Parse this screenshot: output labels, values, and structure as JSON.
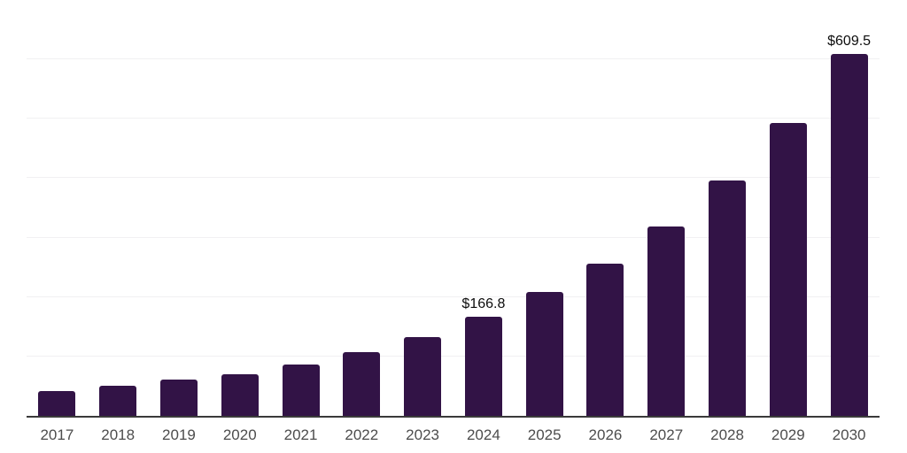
{
  "chart_data": {
    "type": "bar",
    "title": "",
    "xlabel": "",
    "ylabel": "",
    "categories": [
      "2017",
      "2018",
      "2019",
      "2020",
      "2021",
      "2022",
      "2023",
      "2024",
      "2025",
      "2026",
      "2027",
      "2028",
      "2029",
      "2030"
    ],
    "values": [
      41.8,
      50.3,
      60.7,
      70.6,
      86.6,
      107.5,
      132.8,
      166.8,
      207.9,
      256.3,
      319.4,
      396.6,
      492.5,
      609.5
    ],
    "value_labels": [
      "",
      "",
      "",
      "",
      "",
      "",
      "",
      "$166.8",
      "",
      "",
      "",
      "",
      "",
      "$609.5"
    ],
    "ylim": [
      0,
      700
    ],
    "gridline_step": 100,
    "grid": "horizontal-only",
    "legend_position": "none",
    "y_axis_ticks_visible": false,
    "colors": {
      "bar": "#321346",
      "gridline": "#f1f0f2",
      "top_border": "#d7d7d7",
      "axis_line": "#3a3a3a",
      "category_label": "#4d4d4d",
      "value_label": "#0d0d0d",
      "background": "#ffffff"
    }
  }
}
